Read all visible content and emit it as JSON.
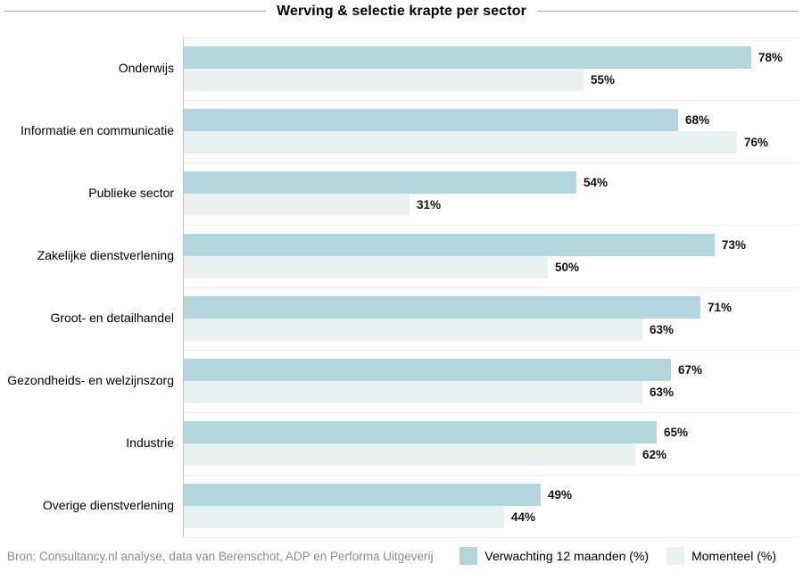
{
  "title": "Werving & selectie krapte per sector",
  "source": "Bron: Consultancy.nl analyse, data van Berenschot, ADP en Performa Uitgeverij",
  "legend": [
    {
      "label": "Verwachting 12 maanden (%)",
      "color": "#b3d5dc"
    },
    {
      "label": "Momenteel (%)",
      "color": "#e9f1f2"
    }
  ],
  "colors": {
    "bar_expectation": "#b3d5dc",
    "bar_current": "#e9f1f2",
    "axis_line": "#c3c3c3",
    "title_rule": "#a6a6a6",
    "source_text": "#8c8c8c"
  },
  "chart_data": {
    "type": "bar",
    "orientation": "horizontal",
    "title": "Werving & selectie krapte per sector",
    "categories": [
      "Onderwijs",
      "Informatie en communicatie",
      "Publieke sector",
      "Zakelijke dienstverlening",
      "Groot- en detailhandel",
      "Gezondheids- en welzijnszorg",
      "Industrie",
      "Overige dienstverlening"
    ],
    "series": [
      {
        "name": "Verwachting 12 maanden (%)",
        "color": "#b3d5dc",
        "values": [
          78,
          68,
          54,
          73,
          71,
          67,
          65,
          49
        ]
      },
      {
        "name": "Momenteel (%)",
        "color": "#e9f1f2",
        "values": [
          55,
          76,
          31,
          50,
          63,
          63,
          62,
          44
        ]
      }
    ],
    "value_suffix": "%",
    "value_labels_shown": true,
    "xlim": [
      0,
      84.5
    ],
    "grid": "category-boundary-lines",
    "legend_position": "bottom-right"
  }
}
